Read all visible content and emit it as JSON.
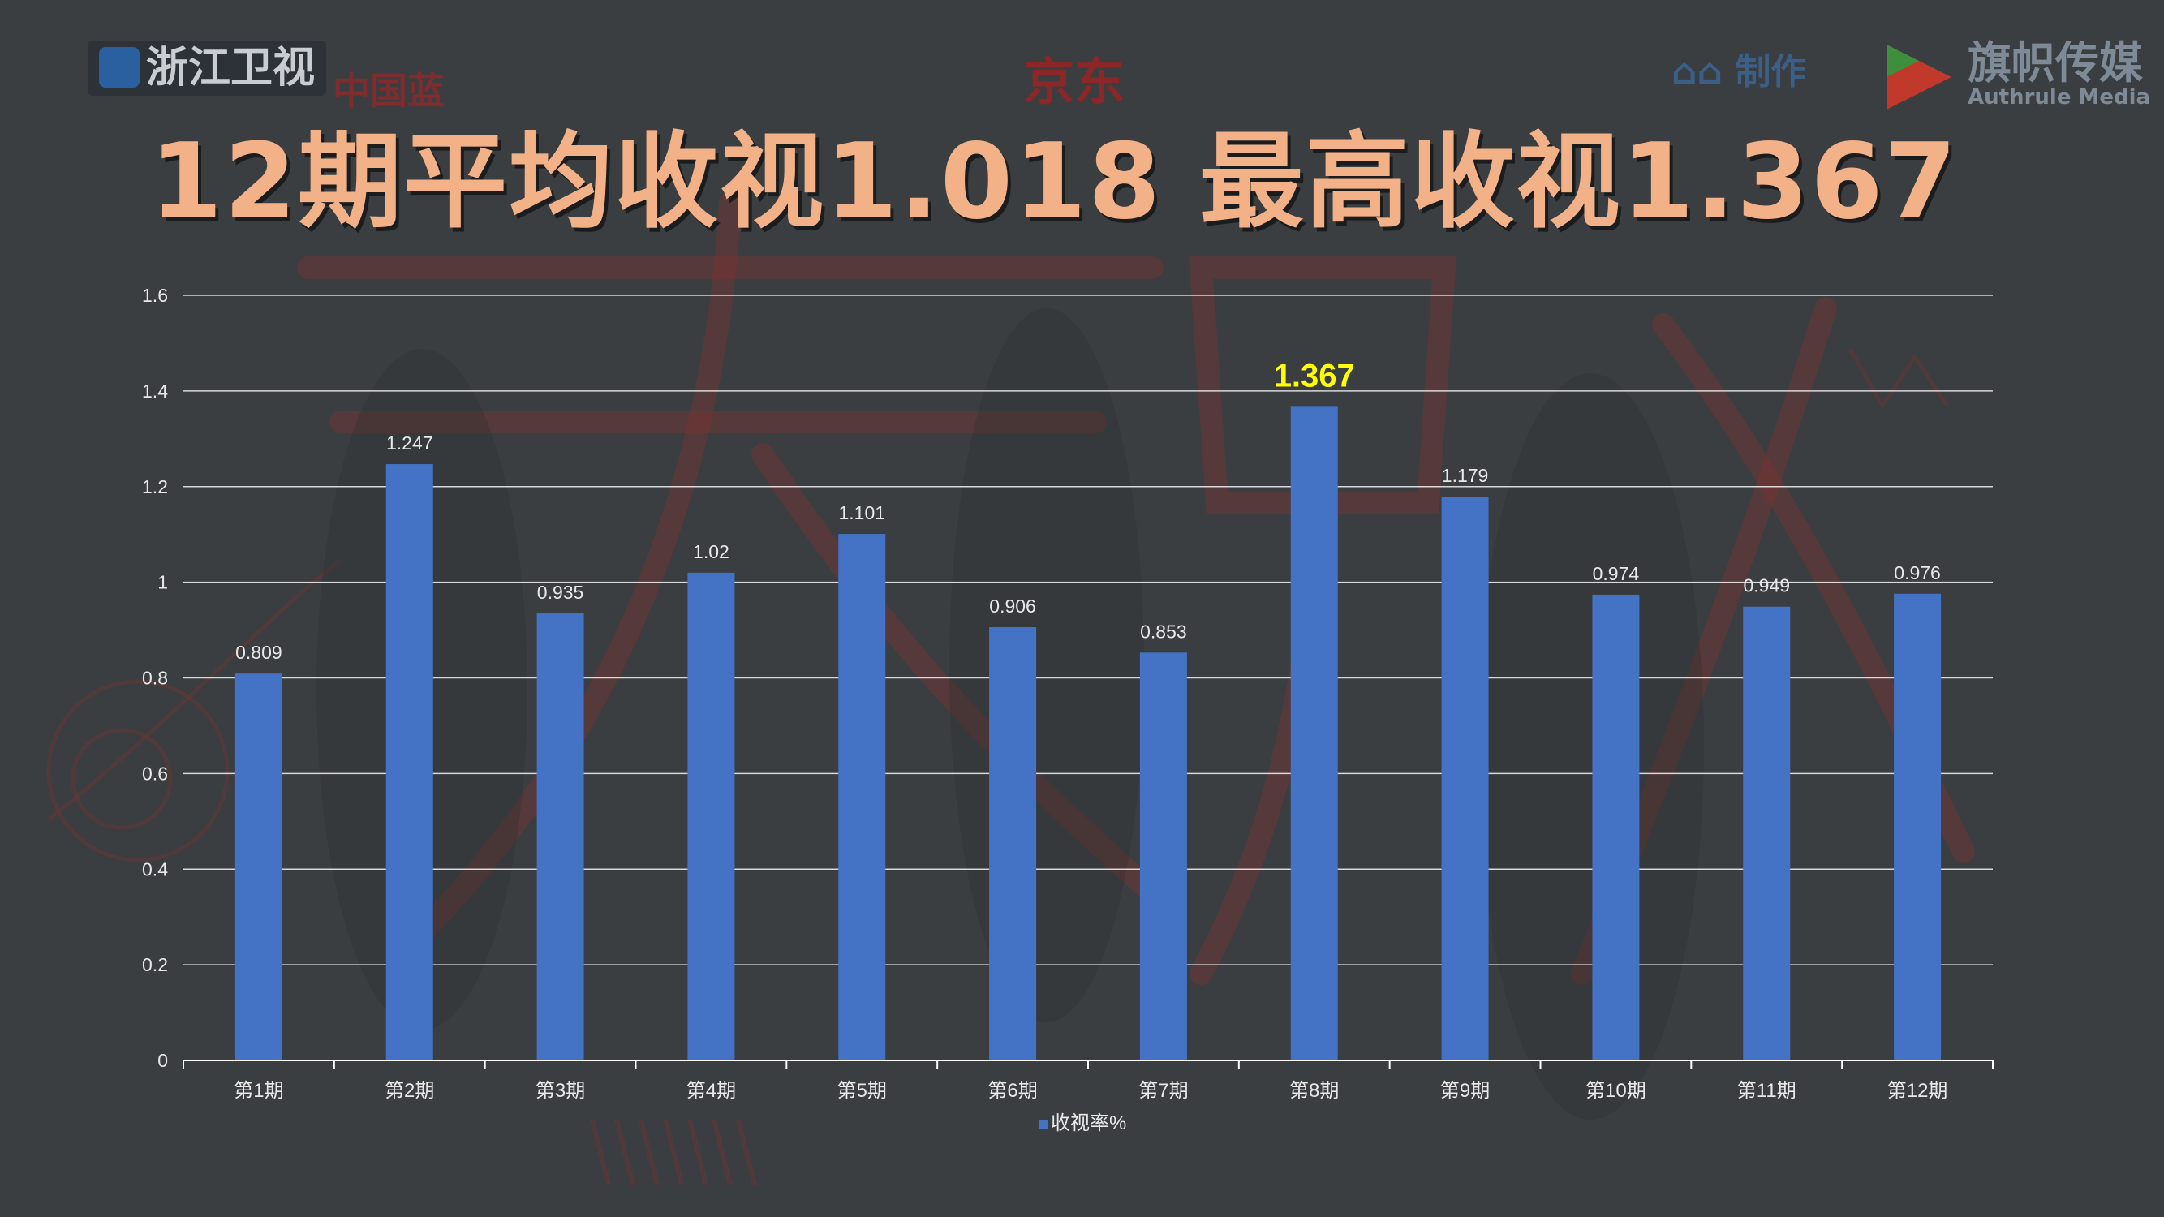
{
  "header": {
    "headline": "12期平均收视1.018   最高收视1.367"
  },
  "logos": {
    "zhejiang_tv": "浙江卫视",
    "china_blue": "中国蓝",
    "jingdong": "京东",
    "producer": "制作",
    "qizhi_cn": "旗帜传媒",
    "qizhi_en": "Authrule Media"
  },
  "colors": {
    "background": "#3a3e40",
    "headline": "#f3b188",
    "bar": "#4472c4",
    "highlight_label": "#ffff00",
    "axis_text": "#e8e8e8",
    "grid": "#ffffff"
  },
  "chart_data": {
    "type": "bar",
    "categories": [
      "第1期",
      "第2期",
      "第3期",
      "第4期",
      "第5期",
      "第6期",
      "第7期",
      "第8期",
      "第9期",
      "第10期",
      "第11期",
      "第12期"
    ],
    "series": [
      {
        "name": "收视率%",
        "values": [
          0.809,
          1.247,
          0.935,
          1.02,
          1.101,
          0.906,
          0.853,
          1.367,
          1.179,
          0.974,
          0.949,
          0.976
        ],
        "labels": [
          "0.809",
          "1.247",
          "0.935",
          "1.02",
          "1.101",
          "0.906",
          "0.853",
          "1.367",
          "1.179",
          "0.974",
          "0.949",
          "0.976"
        ]
      }
    ],
    "highlight_index": 7,
    "ylim": [
      0,
      1.6
    ],
    "yticks": [
      0,
      0.2,
      0.4,
      0.6,
      0.8,
      1,
      1.2,
      1.4,
      1.6
    ],
    "ytick_labels": [
      "0",
      "0.2",
      "0.4",
      "0.6",
      "0.8",
      "1",
      "1.2",
      "1.4",
      "1.6"
    ],
    "grid": true,
    "legend": "bottom-center",
    "xlabel": "",
    "ylabel": ""
  }
}
